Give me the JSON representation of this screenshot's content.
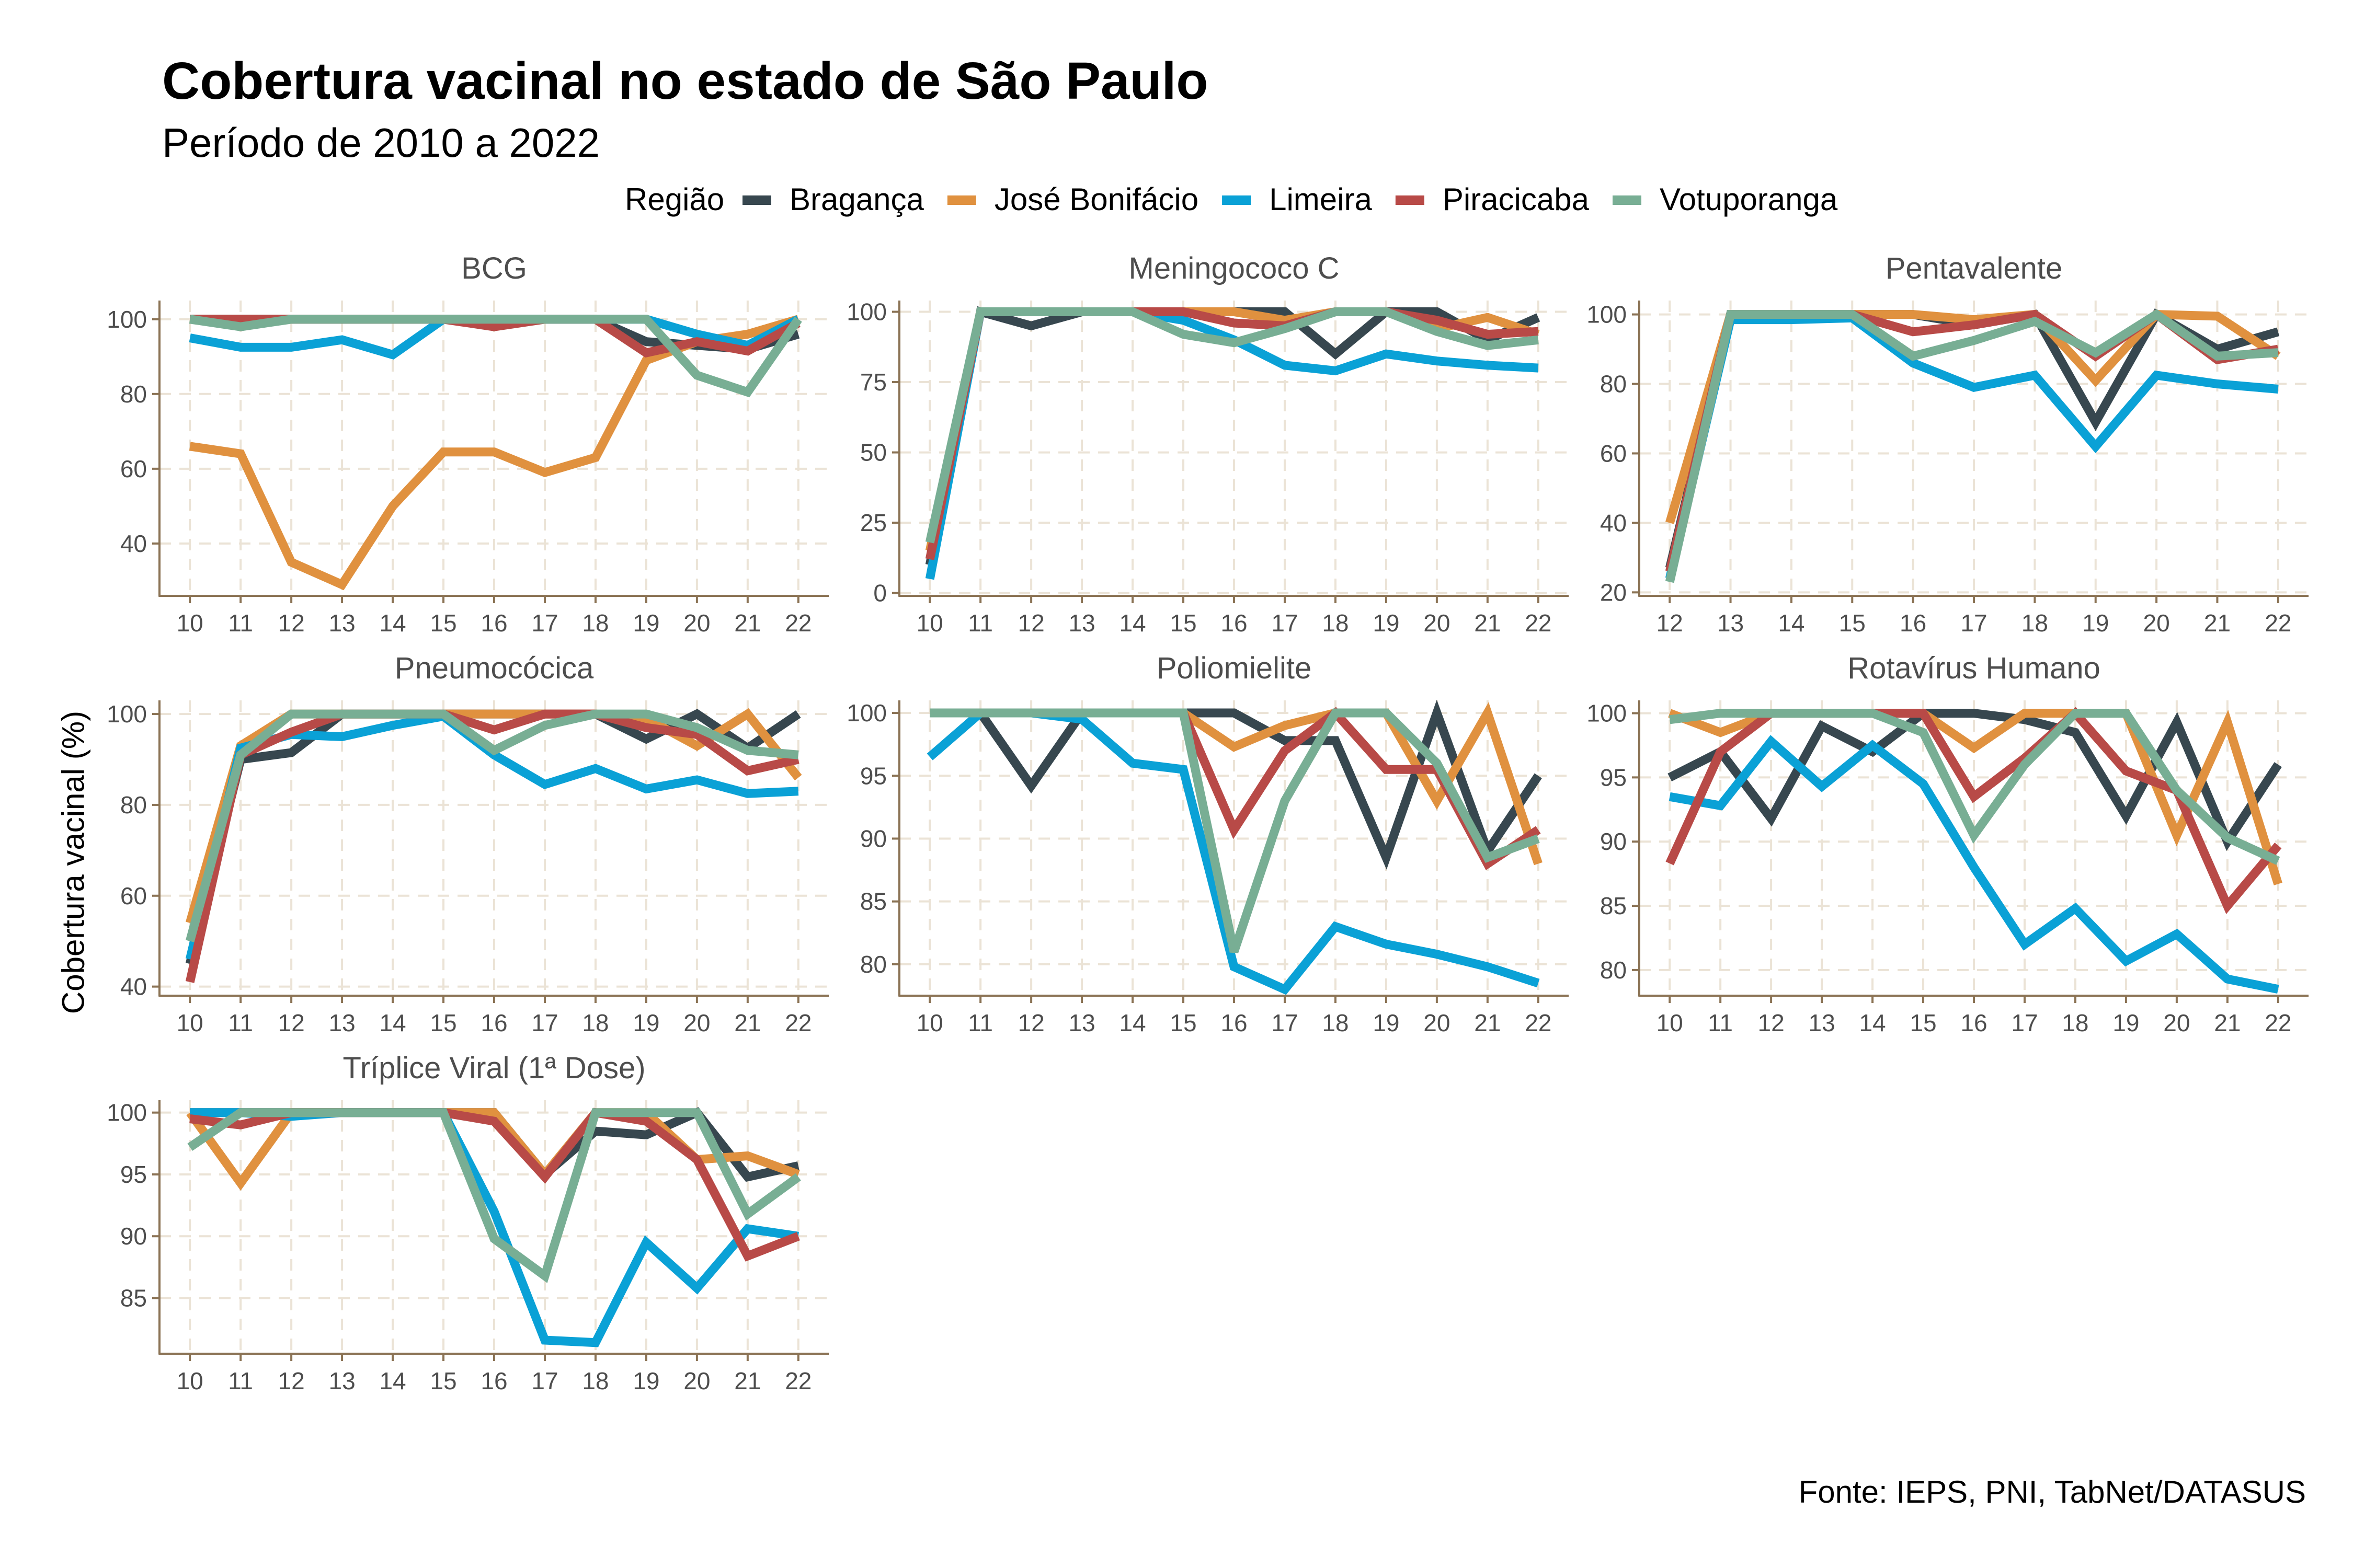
{
  "title": "Cobertura vacinal no estado de São Paulo",
  "subtitle": "Período de 2010 a 2022",
  "caption": "Fonte: IEPS, PNI, TabNet/DATASUS",
  "y_axis_label": "Cobertura vacinal (%)",
  "legend": {
    "title": "Região",
    "placement": "top",
    "items": [
      {
        "name": "Bragança",
        "color": "#37474f"
      },
      {
        "name": "José Bonifácio",
        "color": "#e0913f"
      },
      {
        "name": "Limeira",
        "color": "#0aa1d6"
      },
      {
        "name": "Piracicaba",
        "color": "#b84a47"
      },
      {
        "name": "Votuporanga",
        "color": "#78ae94"
      }
    ]
  },
  "chart_data": [
    {
      "type": "line",
      "title": "BCG",
      "x": [
        10,
        11,
        12,
        13,
        14,
        15,
        16,
        17,
        18,
        19,
        20,
        21,
        22
      ],
      "xlim": [
        10,
        22
      ],
      "ylim": [
        26,
        105
      ],
      "yticks": [
        40,
        60,
        80,
        100
      ],
      "grid": true,
      "series": [
        {
          "name": "Bragança",
          "values": [
            100,
            100,
            100,
            100,
            100,
            100,
            100,
            100,
            100,
            94,
            93,
            92,
            96
          ]
        },
        {
          "name": "José Bonifácio",
          "values": [
            66,
            64,
            35,
            29,
            50,
            64.5,
            64.5,
            59,
            63,
            89,
            94,
            96,
            100
          ]
        },
        {
          "name": "Limeira",
          "values": [
            95,
            92.5,
            92.5,
            94.5,
            90.5,
            100,
            100,
            100,
            100,
            100,
            96,
            93,
            100
          ]
        },
        {
          "name": "Piracicaba",
          "values": [
            100,
            100,
            100,
            100,
            100,
            100,
            98,
            100,
            100,
            91,
            94,
            91.5,
            99
          ]
        },
        {
          "name": "Votuporanga",
          "values": [
            100,
            98,
            100,
            100,
            100,
            100,
            100,
            100,
            100,
            100,
            85,
            80.5,
            100
          ]
        }
      ]
    },
    {
      "type": "line",
      "title": "Meningococo C",
      "x": [
        10,
        11,
        12,
        13,
        14,
        15,
        16,
        17,
        18,
        19,
        20,
        21,
        22
      ],
      "xlim": [
        10,
        22
      ],
      "ylim": [
        -1,
        104
      ],
      "yticks": [
        0,
        25,
        50,
        75,
        100
      ],
      "grid": true,
      "series": [
        {
          "name": "Bragança",
          "values": [
            10,
            100,
            95,
            100,
            100,
            100,
            100,
            100,
            85,
            100,
            100,
            90,
            98
          ]
        },
        {
          "name": "José Bonifácio",
          "values": [
            15,
            100,
            100,
            100,
            100,
            100,
            100,
            97,
            100,
            100,
            94,
            98,
            92
          ]
        },
        {
          "name": "Limeira",
          "values": [
            5,
            100,
            100,
            100,
            100,
            97,
            90,
            81,
            79,
            85,
            82.5,
            81,
            80
          ]
        },
        {
          "name": "Piracicaba",
          "values": [
            12,
            100,
            100,
            100,
            100,
            100,
            96,
            95,
            100,
            100,
            97,
            92,
            93
          ]
        },
        {
          "name": "Votuporanga",
          "values": [
            18,
            100,
            100,
            100,
            100,
            92,
            89,
            94,
            100,
            100,
            93,
            88,
            90
          ]
        }
      ]
    },
    {
      "type": "line",
      "title": "Pentavalente",
      "x": [
        12,
        13,
        14,
        15,
        16,
        17,
        18,
        19,
        20,
        21,
        22
      ],
      "xlim": [
        12,
        22
      ],
      "ylim": [
        19,
        104
      ],
      "yticks": [
        20,
        40,
        60,
        80,
        100
      ],
      "grid": true,
      "series": [
        {
          "name": "Bragança",
          "values": [
            27,
            100,
            100,
            100,
            100,
            97,
            100,
            69,
            100,
            90,
            95
          ]
        },
        {
          "name": "José Bonifácio",
          "values": [
            40,
            100,
            100,
            100,
            100,
            98.5,
            100,
            81,
            100,
            99.5,
            88
          ]
        },
        {
          "name": "Limeira",
          "values": [
            24,
            98.5,
            98.5,
            99,
            86,
            79,
            82.5,
            62,
            82.5,
            80,
            78.5
          ]
        },
        {
          "name": "Piracicaba",
          "values": [
            26,
            100,
            100,
            100,
            95,
            97,
            100,
            88,
            100,
            87,
            90
          ]
        },
        {
          "name": "Votuporanga",
          "values": [
            23,
            100,
            100,
            100,
            88,
            92.5,
            98,
            89,
            100,
            88,
            89
          ]
        }
      ]
    },
    {
      "type": "line",
      "title": "Pneumocócica",
      "x": [
        10,
        11,
        12,
        13,
        14,
        15,
        16,
        17,
        18,
        19,
        20,
        21,
        22
      ],
      "xlim": [
        10,
        22
      ],
      "ylim": [
        38,
        103
      ],
      "yticks": [
        40,
        60,
        80,
        100
      ],
      "grid": true,
      "series": [
        {
          "name": "Bragança",
          "values": [
            45,
            90,
            91.5,
            100,
            100,
            100,
            100,
            100,
            100,
            94.5,
            100,
            92.5,
            100
          ]
        },
        {
          "name": "José Bonifácio",
          "values": [
            54,
            93,
            100,
            100,
            100,
            100,
            100,
            100,
            100,
            99,
            93,
            100,
            86
          ]
        },
        {
          "name": "Limeira",
          "values": [
            46,
            92.5,
            95.5,
            95,
            97.5,
            99.5,
            91,
            84.5,
            88,
            83.5,
            85.5,
            82.5,
            83
          ]
        },
        {
          "name": "Piracicaba",
          "values": [
            41,
            91,
            96,
            100,
            100,
            100,
            96.5,
            100,
            100,
            97,
            95.5,
            87.5,
            90
          ]
        },
        {
          "name": "Votuporanga",
          "values": [
            50,
            91,
            100,
            100,
            100,
            100,
            92,
            97.5,
            100,
            100,
            97,
            92,
            91
          ]
        }
      ]
    },
    {
      "type": "line",
      "title": "Poliomielite",
      "x": [
        10,
        11,
        12,
        13,
        14,
        15,
        16,
        17,
        18,
        19,
        20,
        21,
        22
      ],
      "xlim": [
        10,
        22
      ],
      "ylim": [
        77.5,
        101
      ],
      "yticks": [
        80,
        85,
        90,
        95,
        100
      ],
      "grid": true,
      "series": [
        {
          "name": "Bragança",
          "values": [
            100,
            100,
            94.2,
            100,
            100,
            100,
            100,
            97.8,
            97.8,
            88.5,
            100,
            89,
            95
          ]
        },
        {
          "name": "José Bonifácio",
          "values": [
            100,
            100,
            100,
            100,
            100,
            100,
            97.3,
            99,
            100,
            100,
            93,
            100,
            88
          ]
        },
        {
          "name": "Limeira",
          "values": [
            96.5,
            100,
            100,
            99.5,
            96,
            95.5,
            79.8,
            78,
            83,
            81.6,
            80.8,
            79.8,
            78.5
          ]
        },
        {
          "name": "Piracicaba",
          "values": [
            100,
            100,
            100,
            100,
            100,
            100,
            90.7,
            97,
            100,
            95.5,
            95.5,
            88,
            90.7
          ]
        },
        {
          "name": "Votuporanga",
          "values": [
            100,
            100,
            100,
            100,
            100,
            100,
            81,
            93,
            100,
            100,
            96,
            88.5,
            90
          ]
        }
      ]
    },
    {
      "type": "line",
      "title": "Rotavírus Humano",
      "x": [
        10,
        11,
        12,
        13,
        14,
        15,
        16,
        17,
        18,
        19,
        20,
        21,
        22
      ],
      "xlim": [
        10,
        22
      ],
      "ylim": [
        78,
        101
      ],
      "yticks": [
        80,
        85,
        90,
        95,
        100
      ],
      "grid": true,
      "series": [
        {
          "name": "Bragança",
          "values": [
            95,
            97,
            91.8,
            99,
            97,
            100,
            100,
            99.5,
            98.5,
            92,
            99.3,
            90,
            96
          ]
        },
        {
          "name": "José Bonifácio",
          "values": [
            100,
            98.5,
            100,
            100,
            100,
            100,
            97.3,
            100,
            100,
            100,
            90.5,
            99.3,
            86.7
          ]
        },
        {
          "name": "Limeira",
          "values": [
            93.5,
            92.8,
            97.8,
            94.3,
            97.5,
            94.5,
            88,
            82,
            84.8,
            80.7,
            82.8,
            79.3,
            78.5
          ]
        },
        {
          "name": "Piracicaba",
          "values": [
            88.3,
            97,
            100,
            100,
            100,
            100,
            93.5,
            96.5,
            100,
            95.5,
            94,
            85,
            89.7
          ]
        },
        {
          "name": "Votuporanga",
          "values": [
            99.5,
            100,
            100,
            100,
            100,
            98.5,
            90.5,
            96,
            100,
            100,
            94,
            90.3,
            88.5
          ]
        }
      ]
    },
    {
      "type": "line",
      "title": "Tríplice Viral (1ª Dose)",
      "x": [
        10,
        11,
        12,
        13,
        14,
        15,
        16,
        17,
        18,
        19,
        20,
        21,
        22
      ],
      "xlim": [
        10,
        22
      ],
      "ylim": [
        80.5,
        101
      ],
      "yticks": [
        85,
        90,
        95,
        100
      ],
      "grid": true,
      "series": [
        {
          "name": "Bragança",
          "values": [
            100,
            100,
            100,
            100,
            100,
            100,
            100,
            95,
            98.5,
            98.2,
            100,
            94.8,
            95.7
          ]
        },
        {
          "name": "José Bonifácio",
          "values": [
            100,
            94.3,
            100,
            100,
            100,
            100,
            100,
            95,
            100,
            100,
            96.2,
            96.5,
            95
          ]
        },
        {
          "name": "Limeira",
          "values": [
            100,
            100,
            99.7,
            100,
            100,
            100,
            92,
            81.6,
            81.4,
            89.5,
            85.8,
            90.6,
            90
          ]
        },
        {
          "name": "Piracicaba",
          "values": [
            99.5,
            99,
            100,
            100,
            100,
            100,
            99.3,
            94.8,
            100,
            99.3,
            96.2,
            88.4,
            90
          ]
        },
        {
          "name": "Votuporanga",
          "values": [
            97.2,
            100,
            100,
            100,
            100,
            100,
            89.8,
            86.8,
            100,
            100,
            100,
            91.8,
            94.8
          ]
        }
      ]
    }
  ]
}
